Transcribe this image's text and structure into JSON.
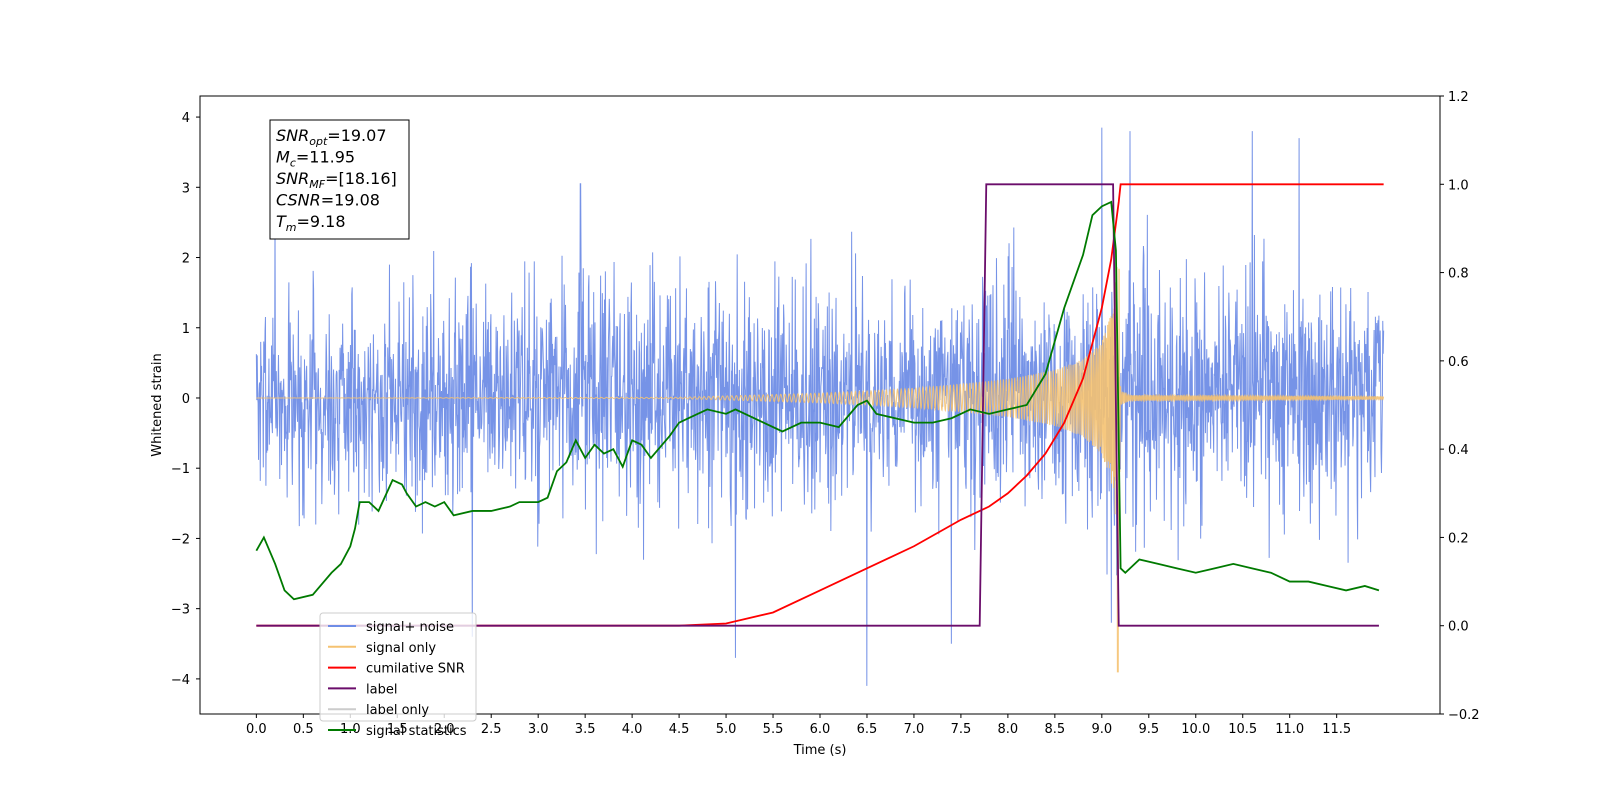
{
  "chart_data": {
    "type": "line",
    "xlabel": "Time (s)",
    "ylabel": "Whitened strain",
    "xlim": [
      -0.6,
      12.6
    ],
    "ylim": [
      -4.5,
      4.3
    ],
    "y2lim": [
      -0.2,
      1.2
    ],
    "x_ticks": [
      0.0,
      0.5,
      1.0,
      1.5,
      2.0,
      2.5,
      3.0,
      3.5,
      4.0,
      4.5,
      5.0,
      5.5,
      6.0,
      6.5,
      7.0,
      7.5,
      8.0,
      8.5,
      9.0,
      9.5,
      10.0,
      10.5,
      11.0,
      11.5
    ],
    "x_tick_labels": [
      "0.0",
      "0.5",
      "1.0",
      "1.5",
      "2.0",
      "2.5",
      "3.0",
      "3.5",
      "4.0",
      "4.5",
      "5.0",
      "5.5",
      "6.0",
      "6.5",
      "7.0",
      "7.5",
      "8.0",
      "8.5",
      "9.0",
      "9.5",
      "10.0",
      "10.5",
      "11.0",
      "11.5"
    ],
    "y_ticks": [
      -4,
      -3,
      -2,
      -1,
      0,
      1,
      2,
      3,
      4
    ],
    "y_tick_labels": [
      "−4",
      "−3",
      "−2",
      "−1",
      "0",
      "1",
      "2",
      "3",
      "4"
    ],
    "y2_ticks": [
      -0.2,
      0.0,
      0.2,
      0.4,
      0.6,
      0.8,
      1.0,
      1.2
    ],
    "y2_tick_labels": [
      "−0.2",
      "0.0",
      "0.2",
      "0.4",
      "0.6",
      "0.8",
      "1.0",
      "1.2"
    ],
    "grid": false,
    "legend_position": "bottom-left",
    "series": [
      {
        "name": "signal+ noise",
        "axis": "left",
        "color": "#6f8de6",
        "x": [
          0.0,
          12.0
        ],
        "noise_envelope": [
          [
            0.0,
            1.9
          ],
          [
            8.0,
            2.1
          ],
          [
            9.18,
            2.3
          ],
          [
            12.0,
            2.0
          ]
        ],
        "peaks": [
          {
            "x": 0.2,
            "y": 2.6
          },
          {
            "x": 3.45,
            "y": 3.05
          },
          {
            "x": 6.5,
            "y": 3.85
          },
          {
            "x": 9.0,
            "y": 3.85
          },
          {
            "x": 9.3,
            "y": 3.8
          },
          {
            "x": 10.6,
            "y": 3.8
          },
          {
            "x": 11.1,
            "y": 3.7
          },
          {
            "x": 6.5,
            "y": -4.1
          },
          {
            "x": 5.1,
            "y": -3.7
          },
          {
            "x": 2.3,
            "y": -3.4
          },
          {
            "x": 9.1,
            "y": -3.2
          },
          {
            "x": 7.4,
            "y": -3.5
          }
        ]
      },
      {
        "name": "signal only",
        "axis": "left",
        "color": "#f5c271",
        "envelope": [
          [
            0.0,
            0.0
          ],
          [
            4.5,
            0.01
          ],
          [
            5.5,
            0.05
          ],
          [
            6.0,
            0.07
          ],
          [
            6.5,
            0.1
          ],
          [
            7.0,
            0.14
          ],
          [
            7.5,
            0.2
          ],
          [
            8.0,
            0.27
          ],
          [
            8.5,
            0.4
          ],
          [
            8.8,
            0.55
          ],
          [
            9.0,
            0.8
          ],
          [
            9.1,
            1.2
          ],
          [
            9.15,
            1.8
          ],
          [
            9.18,
            2.5
          ],
          [
            9.2,
            0.1
          ],
          [
            9.3,
            0.04
          ],
          [
            12.0,
            0.02
          ]
        ],
        "min_point": {
          "x": 9.17,
          "y": -3.9
        }
      },
      {
        "name": "cumilative SNR",
        "axis": "right",
        "color": "#ff0000",
        "x": [
          0.0,
          4.0,
          4.5,
          5.0,
          5.5,
          6.0,
          6.5,
          7.0,
          7.5,
          7.8,
          8.0,
          8.2,
          8.4,
          8.6,
          8.8,
          9.0,
          9.1,
          9.18,
          9.2,
          12.0
        ],
        "values": [
          0.0,
          0.0,
          0.0,
          0.005,
          0.03,
          0.08,
          0.13,
          0.18,
          0.24,
          0.27,
          0.3,
          0.34,
          0.39,
          0.46,
          0.56,
          0.72,
          0.83,
          0.96,
          1.0,
          1.0
        ]
      },
      {
        "name": "label",
        "axis": "right",
        "color": "#6b0d6b",
        "x": [
          0.0,
          7.7,
          7.77,
          9.12,
          9.18,
          11.95
        ],
        "values": [
          0.0,
          0.0,
          1.0,
          1.0,
          0.0,
          0.0
        ]
      },
      {
        "name": "label only",
        "axis": "right",
        "color": "#cccccc",
        "x": [],
        "values": []
      },
      {
        "name": "signal statistics",
        "axis": "right",
        "color": "#007a00",
        "x": [
          0.0,
          0.08,
          0.2,
          0.3,
          0.4,
          0.6,
          0.8,
          0.9,
          1.0,
          1.05,
          1.1,
          1.2,
          1.3,
          1.45,
          1.55,
          1.6,
          1.7,
          1.8,
          1.9,
          2.0,
          2.1,
          2.3,
          2.5,
          2.7,
          2.8,
          3.0,
          3.1,
          3.2,
          3.3,
          3.4,
          3.5,
          3.6,
          3.7,
          3.8,
          3.9,
          4.0,
          4.1,
          4.2,
          4.4,
          4.5,
          4.6,
          4.7,
          4.8,
          5.0,
          5.1,
          5.2,
          5.4,
          5.6,
          5.8,
          6.0,
          6.2,
          6.4,
          6.5,
          6.6,
          6.8,
          7.0,
          7.2,
          7.4,
          7.6,
          7.8,
          8.0,
          8.2,
          8.4,
          8.6,
          8.8,
          8.9,
          9.0,
          9.1,
          9.15,
          9.2,
          9.25,
          9.4,
          9.6,
          9.8,
          10.0,
          10.2,
          10.4,
          10.6,
          10.8,
          11.0,
          11.2,
          11.4,
          11.6,
          11.8,
          11.95
        ],
        "values": [
          0.17,
          0.2,
          0.14,
          0.08,
          0.06,
          0.07,
          0.12,
          0.14,
          0.18,
          0.22,
          0.28,
          0.28,
          0.26,
          0.33,
          0.32,
          0.3,
          0.27,
          0.28,
          0.27,
          0.28,
          0.25,
          0.26,
          0.26,
          0.27,
          0.28,
          0.28,
          0.29,
          0.35,
          0.37,
          0.42,
          0.38,
          0.41,
          0.39,
          0.4,
          0.36,
          0.42,
          0.41,
          0.38,
          0.43,
          0.46,
          0.47,
          0.48,
          0.49,
          0.48,
          0.49,
          0.48,
          0.46,
          0.44,
          0.46,
          0.46,
          0.45,
          0.5,
          0.51,
          0.48,
          0.47,
          0.46,
          0.46,
          0.47,
          0.49,
          0.48,
          0.49,
          0.5,
          0.57,
          0.72,
          0.84,
          0.93,
          0.95,
          0.96,
          0.85,
          0.13,
          0.12,
          0.15,
          0.14,
          0.13,
          0.12,
          0.13,
          0.14,
          0.13,
          0.12,
          0.1,
          0.1,
          0.09,
          0.08,
          0.09,
          0.08
        ]
      }
    ],
    "annotation": [
      {
        "main": "SNR",
        "sub": "opt",
        "rest": "=19.07"
      },
      {
        "main": "M",
        "sub": "c",
        "rest": "=11.95"
      },
      {
        "main": "SNR",
        "sub": "MF",
        "rest": "=[18.16]"
      },
      {
        "main": "CSNR",
        "sub": "",
        "rest": "=19.08"
      },
      {
        "main": "T",
        "sub": "m",
        "rest": "=9.18"
      }
    ]
  }
}
